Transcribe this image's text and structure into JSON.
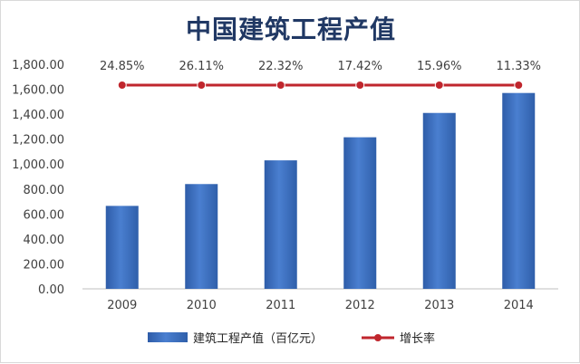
{
  "chart_data": {
    "type": "bar+line",
    "title": "中国建筑工程产值",
    "categories": [
      "2009",
      "2010",
      "2011",
      "2012",
      "2013",
      "2014"
    ],
    "series": [
      {
        "name": "建筑工程产值（百亿元）",
        "type": "bar",
        "values": [
          665,
          840,
          1030,
          1215,
          1410,
          1570
        ],
        "color": "#4472c4"
      },
      {
        "name": "增长率",
        "type": "line",
        "values": [
          24.85,
          26.11,
          22.32,
          17.42,
          15.96,
          11.33
        ],
        "labels": [
          "24.85%",
          "26.11%",
          "22.32%",
          "17.42%",
          "15.96%",
          "11.33%"
        ],
        "color": "#c0262d"
      }
    ],
    "y_ticks": [
      "0.00",
      "200.00",
      "400.00",
      "600.00",
      "800.00",
      "1,000.00",
      "1,200.00",
      "1,400.00",
      "1,600.00",
      "1,800.00"
    ],
    "ylim": [
      0,
      1800
    ],
    "grid": false,
    "legend_position": "bottom"
  }
}
